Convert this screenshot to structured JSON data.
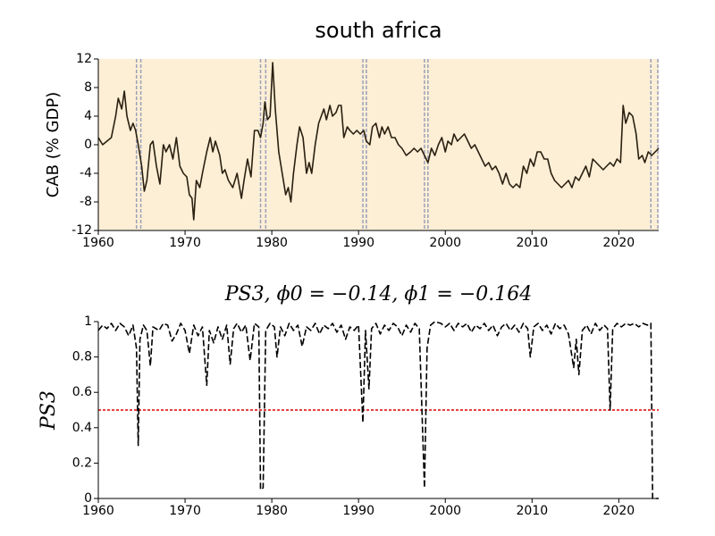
{
  "chart_data": [
    {
      "type": "line",
      "title": "south africa",
      "y_label": "CAB (% GDP)",
      "xlim": [
        1960,
        2024.6
      ],
      "xticks": [
        1960,
        1970,
        1980,
        1990,
        2000,
        2010,
        2020
      ],
      "ylim": [
        -12,
        12
      ],
      "yticks": [
        12,
        8,
        4,
        0,
        -4,
        -8,
        -12
      ],
      "background": "#fdefd6",
      "line_color": "#2a2010",
      "vlines": [
        1964.4,
        1964.9,
        1978.7,
        1979.3,
        1990.5,
        1990.9,
        1997.6,
        1998.0,
        2023.7,
        2024.5
      ],
      "vline_color": "#9aa0b8",
      "x": [
        1960,
        1960.5,
        1961,
        1961.5,
        1962,
        1962.3,
        1962.7,
        1963,
        1963.3,
        1963.7,
        1964,
        1964.3,
        1964.6,
        1965,
        1965.3,
        1965.6,
        1966,
        1966.3,
        1966.7,
        1967.1,
        1967.5,
        1967.8,
        1968.2,
        1968.6,
        1969,
        1969.4,
        1969.8,
        1970.2,
        1970.5,
        1970.8,
        1971,
        1971.3,
        1971.7,
        1972,
        1972.5,
        1972.9,
        1973.2,
        1973.5,
        1974,
        1974.3,
        1974.6,
        1975,
        1975.5,
        1976,
        1976.5,
        1976.8,
        1977.2,
        1977.6,
        1978,
        1978.4,
        1978.7,
        1979,
        1979.2,
        1979.5,
        1979.8,
        1980.1,
        1980.4,
        1980.8,
        1981.2,
        1981.6,
        1981.9,
        1982.2,
        1982.5,
        1982.9,
        1983.2,
        1983.6,
        1984,
        1984.3,
        1984.6,
        1985,
        1985.4,
        1985.7,
        1986,
        1986.3,
        1986.7,
        1987,
        1987.4,
        1987.7,
        1988,
        1988.3,
        1988.7,
        1989,
        1989.4,
        1989.8,
        1990.2,
        1990.6,
        1990.9,
        1991.3,
        1991.6,
        1992,
        1992.4,
        1992.7,
        1993,
        1993.4,
        1993.8,
        1994.2,
        1994.6,
        1995,
        1995.5,
        1996,
        1996.4,
        1996.8,
        1997.2,
        1997.6,
        1998,
        1998.4,
        1998.8,
        1999.2,
        1999.6,
        2000,
        2000.3,
        2000.7,
        2001,
        2001.4,
        2001.8,
        2002.2,
        2002.6,
        2003,
        2003.4,
        2003.8,
        2004.2,
        2004.6,
        2005,
        2005.4,
        2005.8,
        2006.2,
        2006.6,
        2007,
        2007.4,
        2007.8,
        2008.2,
        2008.6,
        2009,
        2009.4,
        2009.8,
        2010.2,
        2010.6,
        2011,
        2011.4,
        2011.8,
        2012.2,
        2012.6,
        2013,
        2013.4,
        2013.8,
        2014.2,
        2014.6,
        2015,
        2015.4,
        2015.8,
        2016.2,
        2016.6,
        2017,
        2017.4,
        2017.8,
        2018.2,
        2018.6,
        2019,
        2019.4,
        2019.8,
        2020.2,
        2020.5,
        2020.8,
        2021.2,
        2021.6,
        2022,
        2022.3,
        2022.7,
        2023,
        2023.4,
        2023.8,
        2024.2,
        2024.6
      ],
      "values": [
        1,
        0,
        0.5,
        1,
        4,
        6.5,
        5,
        7.5,
        4,
        2,
        3,
        2,
        0,
        -3,
        -6.5,
        -5,
        0,
        0.5,
        -3,
        -5.5,
        0,
        -1,
        0,
        -2,
        1,
        -3,
        -4,
        -4.5,
        -7,
        -7.5,
        -10.5,
        -5,
        -6,
        -4,
        -1,
        1,
        -1,
        0.5,
        -1.5,
        -4,
        -3.5,
        -5,
        -6,
        -4,
        -7.5,
        -5,
        -2,
        -4.5,
        2,
        2,
        1,
        3,
        6,
        3.5,
        4,
        11.5,
        5,
        -1,
        -4,
        -7,
        -6,
        -8,
        -4,
        0,
        2.5,
        1,
        -4,
        -2.5,
        -4,
        0,
        3,
        4,
        5,
        3.5,
        5.5,
        4,
        4.5,
        5.5,
        5.5,
        1,
        2.5,
        2,
        1.5,
        2,
        1.5,
        2,
        0.5,
        0,
        2.5,
        3,
        1,
        2.5,
        1.5,
        2.5,
        1,
        1,
        0,
        -0.5,
        -1.5,
        -1,
        -0.5,
        -1,
        -0.5,
        -1.5,
        -2.5,
        -0.5,
        -1.5,
        0,
        1,
        -1,
        0.5,
        0,
        1.5,
        0.5,
        1,
        1.5,
        0.5,
        -0.5,
        0,
        -1,
        -2,
        -3,
        -2.5,
        -3.5,
        -3,
        -4,
        -5.5,
        -4,
        -5.5,
        -6,
        -5.5,
        -6,
        -3,
        -4,
        -2,
        -3,
        -1,
        -1,
        -2,
        -2,
        -4,
        -5,
        -5.5,
        -6,
        -5.5,
        -5,
        -6,
        -4.5,
        -5,
        -4,
        -3,
        -4.5,
        -2,
        -2.5,
        -3,
        -3.5,
        -3,
        -2.5,
        -3,
        -2,
        -2.5,
        5.5,
        3,
        4.5,
        4,
        1.5,
        -2,
        -1.5,
        -2.5,
        -1,
        -1.5,
        -1,
        -0.5
      ]
    },
    {
      "type": "line",
      "title": "PS3, ϕ0 = −0.14, ϕ1 = −0.164",
      "y_label": "PS3",
      "xlim": [
        1960,
        2024.6
      ],
      "xticks": [
        1960,
        1970,
        1980,
        1990,
        2000,
        2010,
        2020
      ],
      "ylim": [
        0,
        1
      ],
      "yticks": [
        0,
        0.2,
        0.4,
        0.6,
        0.8,
        1
      ],
      "line_color": "#000000",
      "line_dashed": true,
      "hline": 0.5,
      "hline_color": "#e00000",
      "x": [
        1960,
        1960.5,
        1961,
        1961.5,
        1962,
        1962.5,
        1963,
        1963.5,
        1964,
        1964.4,
        1964.6,
        1964.8,
        1965.2,
        1965.6,
        1966,
        1966.3,
        1967,
        1967.5,
        1968,
        1968.5,
        1969,
        1969.5,
        1970,
        1970.5,
        1971,
        1971.5,
        1972,
        1972.5,
        1972.8,
        1973.3,
        1973.8,
        1974.3,
        1974.8,
        1975.2,
        1975.6,
        1976,
        1976.5,
        1977,
        1977.5,
        1978,
        1978.5,
        1978.7,
        1979,
        1979.3,
        1979.8,
        1980.3,
        1980.6,
        1981,
        1981.5,
        1982,
        1982.5,
        1983,
        1983.5,
        1984,
        1984.5,
        1985,
        1985.5,
        1986,
        1986.5,
        1987,
        1987.5,
        1988,
        1988.5,
        1989,
        1989.5,
        1990,
        1990.5,
        1990.8,
        1991.2,
        1991.5,
        1992,
        1992.5,
        1993,
        1993.5,
        1994,
        1994.5,
        1995,
        1995.5,
        1996,
        1996.5,
        1997,
        1997.6,
        1997.9,
        1998.3,
        1998.8,
        1999.5,
        2000,
        2000.5,
        2001,
        2001.5,
        2002,
        2002.5,
        2003,
        2003.5,
        2004,
        2004.5,
        2005,
        2005.5,
        2006,
        2006.5,
        2007,
        2007.5,
        2008,
        2008.5,
        2009,
        2009.5,
        2009.8,
        2010.2,
        2010.7,
        2011.2,
        2011.7,
        2012.2,
        2012.7,
        2013.2,
        2013.7,
        2014.2,
        2014.8,
        2015.1,
        2015.4,
        2015.8,
        2016.3,
        2016.8,
        2017.3,
        2017.8,
        2018.3,
        2018.7,
        2019,
        2019.3,
        2019.8,
        2020.3,
        2020.8,
        2021.3,
        2021.8,
        2022.3,
        2022.8,
        2023.3,
        2023.7,
        2023.9,
        2024.6
      ],
      "values": [
        0.95,
        0.98,
        0.96,
        0.99,
        0.95,
        0.99,
        0.97,
        0.92,
        0.98,
        0.85,
        0.3,
        0.9,
        0.98,
        0.95,
        0.75,
        0.97,
        0.95,
        0.99,
        0.98,
        0.89,
        0.93,
        0.99,
        0.95,
        0.82,
        0.98,
        0.92,
        0.97,
        0.64,
        0.95,
        0.88,
        0.97,
        0.9,
        0.98,
        0.76,
        0.96,
        0.99,
        0.94,
        0.98,
        0.78,
        0.99,
        0.97,
        0.05,
        0.06,
        0.95,
        0.99,
        0.97,
        0.8,
        0.97,
        0.92,
        0.99,
        0.95,
        0.98,
        0.86,
        0.97,
        0.95,
        0.99,
        0.93,
        0.98,
        0.96,
        0.99,
        0.94,
        0.98,
        0.9,
        0.97,
        0.95,
        0.98,
        0.43,
        0.95,
        0.62,
        0.96,
        0.99,
        0.93,
        0.98,
        0.95,
        0.99,
        0.97,
        0.92,
        0.98,
        0.94,
        0.99,
        0.96,
        0.06,
        0.85,
        0.98,
        1,
        0.99,
        0.97,
        0.99,
        0.95,
        0.99,
        0.97,
        0.99,
        0.94,
        0.98,
        0.96,
        0.99,
        0.95,
        0.98,
        0.92,
        0.97,
        0.99,
        0.95,
        0.98,
        0.94,
        0.99,
        0.96,
        0.8,
        0.97,
        0.99,
        0.95,
        0.98,
        0.93,
        0.99,
        0.96,
        0.98,
        0.93,
        0.74,
        0.9,
        0.7,
        0.95,
        0.98,
        0.93,
        0.99,
        0.95,
        0.98,
        0.96,
        0.5,
        0.96,
        0.99,
        0.97,
        0.99,
        0.98,
        0.99,
        0.97,
        0.99,
        0.98,
        0.99,
        0,
        0
      ]
    }
  ]
}
